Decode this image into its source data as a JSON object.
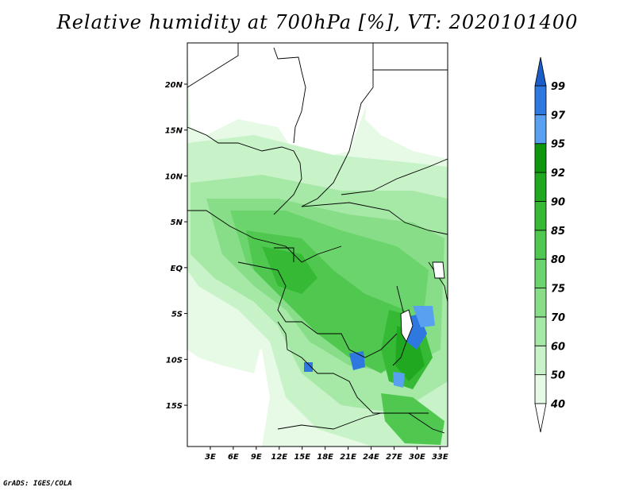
{
  "title": "Relative humidity at 700hPa [%], VT: 2020101400",
  "credit": "GrADS: IGES/COLA",
  "map": {
    "lon_range": [
      0,
      34
    ],
    "lat_range": [
      -19.5,
      24.5
    ],
    "lat_ticks": [
      {
        "value": 20,
        "label": "20N"
      },
      {
        "value": 15,
        "label": "15N"
      },
      {
        "value": 10,
        "label": "10N"
      },
      {
        "value": 5,
        "label": "5N"
      },
      {
        "value": 0,
        "label": "EQ"
      },
      {
        "value": -5,
        "label": "5S"
      },
      {
        "value": -10,
        "label": "10S"
      },
      {
        "value": -15,
        "label": "15S"
      }
    ],
    "lon_ticks": [
      {
        "value": 3,
        "label": "3E"
      },
      {
        "value": 6,
        "label": "6E"
      },
      {
        "value": 9,
        "label": "9E"
      },
      {
        "value": 12,
        "label": "12E"
      },
      {
        "value": 15,
        "label": "15E"
      },
      {
        "value": 18,
        "label": "18E"
      },
      {
        "value": 21,
        "label": "21E"
      },
      {
        "value": 24,
        "label": "24E"
      },
      {
        "value": 27,
        "label": "27E"
      },
      {
        "value": 30,
        "label": "30E"
      },
      {
        "value": 33,
        "label": "33E"
      }
    ]
  },
  "colorbar": {
    "levels": [
      "40",
      "50",
      "60",
      "70",
      "75",
      "80",
      "85",
      "90",
      "92",
      "95",
      "97",
      "99"
    ],
    "colors": [
      "#ffffff",
      "#e6fae6",
      "#c8f2c8",
      "#a6e8a6",
      "#88de88",
      "#6cd46c",
      "#50c850",
      "#36ba36",
      "#20a820",
      "#0e960e",
      "#5aa0f0",
      "#2e78e0",
      "#1c5ec8"
    ]
  },
  "legend": {
    "colors": {
      "water": "#ffffff",
      "border": "#000000"
    }
  }
}
